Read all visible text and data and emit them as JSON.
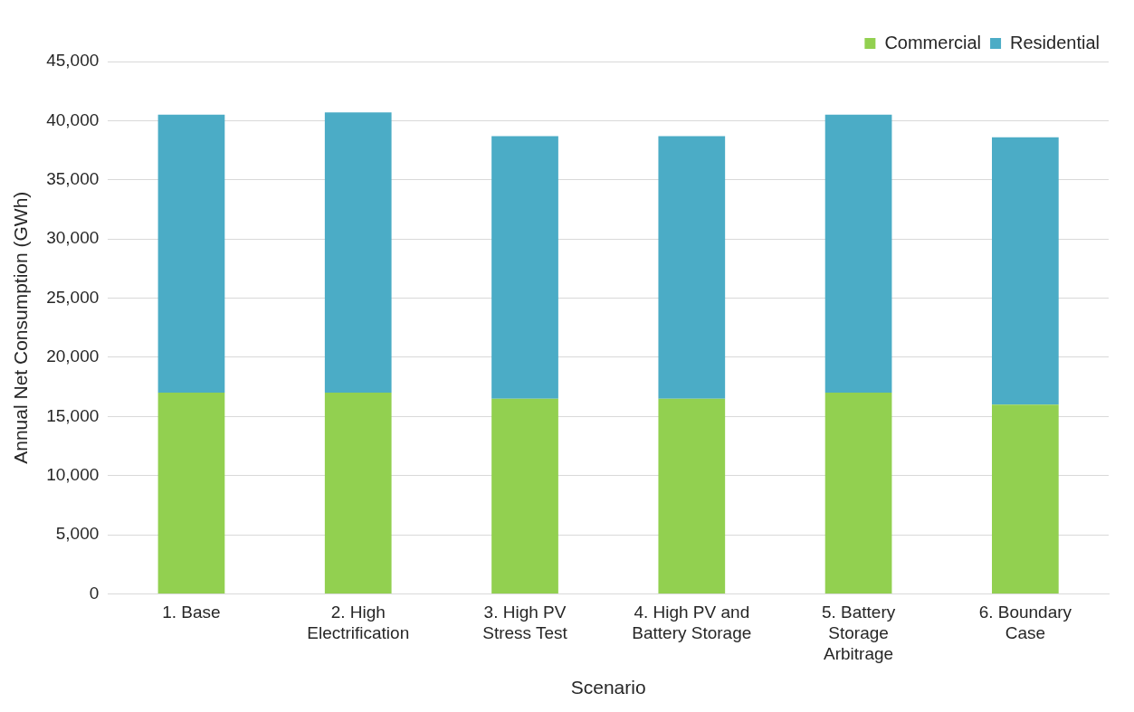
{
  "chart_data": {
    "type": "bar",
    "stacked": true,
    "xlabel": "Scenario",
    "ylabel": "Annual Net Consumption (GWh)",
    "categories": [
      "1. Base",
      "2. High Electrification",
      "3. High PV Stress Test",
      "4. High PV and Battery Storage",
      "5. Battery Storage Arbitrage",
      "6. Boundary Case"
    ],
    "series": [
      {
        "name": "Commercial",
        "color": "#92d050",
        "values": [
          17000,
          17000,
          16500,
          16500,
          17000,
          16000
        ]
      },
      {
        "name": "Residential",
        "color": "#4bacc6",
        "values": [
          23500,
          23700,
          22200,
          22200,
          23500,
          22600
        ]
      }
    ],
    "ylim": [
      0,
      45000
    ],
    "yticks": [
      0,
      {
        "value": 5000,
        "label": "5,000"
      },
      {
        "value": 10000,
        "label": "10,000"
      },
      {
        "value": 15000,
        "label": "15,000"
      },
      {
        "value": 20000,
        "label": "20,000"
      },
      {
        "value": 25000,
        "label": "25,000"
      },
      {
        "value": 30000,
        "label": "30,000"
      },
      {
        "value": 35000,
        "label": "35,000"
      },
      {
        "value": 40000,
        "label": "40,000"
      },
      {
        "value": 45000,
        "label": "45,000"
      }
    ],
    "grid": "y",
    "legend": "top right"
  }
}
